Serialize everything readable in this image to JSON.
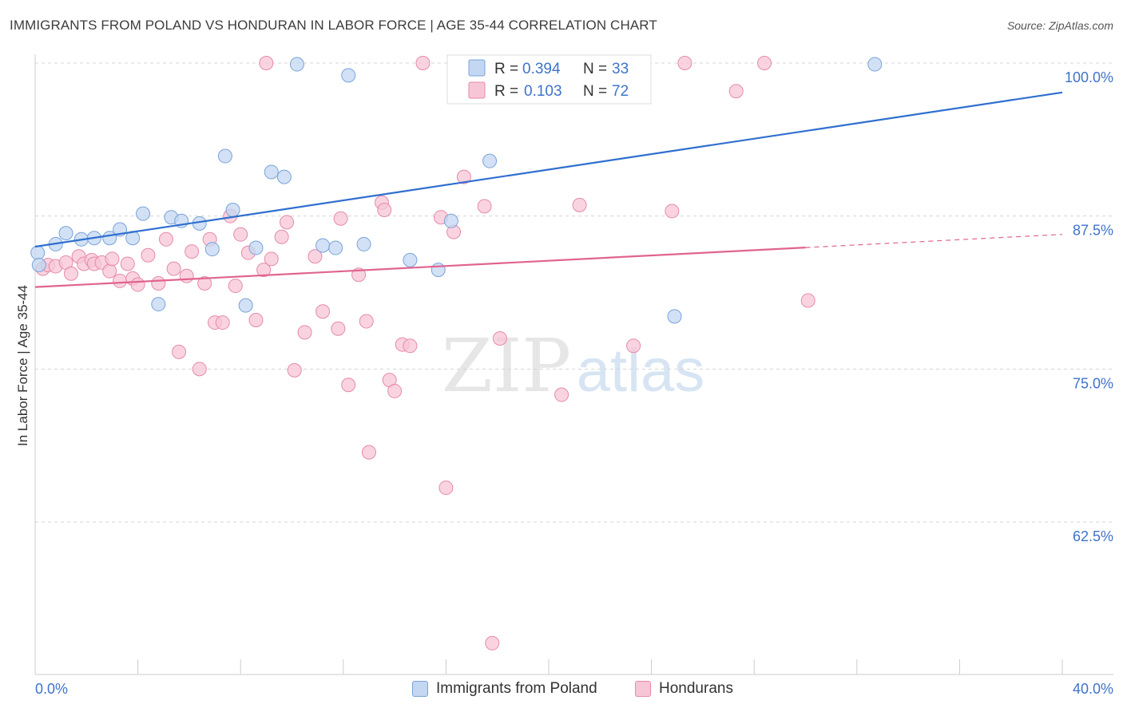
{
  "header": {
    "title": "IMMIGRANTS FROM POLAND VS HONDURAN IN LABOR FORCE | AGE 35-44 CORRELATION CHART",
    "source": "Source: ZipAtlas.com"
  },
  "watermark": {
    "zip": "ZIP",
    "atlas": "atlas"
  },
  "colors": {
    "blue_fill": "#c3d7f2",
    "blue_stroke": "#7aa3d9",
    "blue_line": "#2f6fcf",
    "pink_fill": "#f7c6d6",
    "pink_stroke": "#e68aaa",
    "pink_line": "#e0648f",
    "axis_label": "#3f73c9",
    "grid": "#d5d5d5"
  },
  "stats_legend": [
    {
      "r_label": "R =",
      "r_value": "0.394",
      "n_label": "N =",
      "n_value": "33"
    },
    {
      "r_label": "R =",
      "r_value": "0.103",
      "n_label": "N =",
      "n_value": "72"
    }
  ],
  "chart_data": {
    "type": "scatter",
    "xlabel": "",
    "ylabel": "In Labor Force | Age 35-44",
    "xlim": [
      0,
      40
    ],
    "ylim": [
      50,
      101
    ],
    "x_tick_labels": [
      "0.0%",
      "40.0%"
    ],
    "y_ticks": [
      62.5,
      75.0,
      87.5,
      100.0
    ],
    "y_tick_labels": [
      "62.5%",
      "75.0%",
      "87.5%",
      "100.0%"
    ],
    "grid": "horizontal dashed",
    "legend": "bottom-center",
    "series": [
      {
        "name": "Immigrants from Poland",
        "trend": {
          "x0": 0,
          "y0": 85.0,
          "x1": 40,
          "y1": 97.6,
          "dashed_from": null
        },
        "points": [
          [
            0.1,
            84.5
          ],
          [
            0.8,
            85.2
          ],
          [
            1.2,
            86.1
          ],
          [
            1.8,
            85.6
          ],
          [
            2.3,
            85.7
          ],
          [
            2.9,
            85.7
          ],
          [
            3.3,
            86.4
          ],
          [
            3.8,
            85.7
          ],
          [
            4.2,
            87.7
          ],
          [
            4.8,
            80.3
          ],
          [
            5.3,
            87.4
          ],
          [
            5.7,
            87.1
          ],
          [
            6.4,
            86.9
          ],
          [
            6.9,
            84.8
          ],
          [
            7.4,
            92.4
          ],
          [
            7.7,
            88.0
          ],
          [
            8.2,
            80.2
          ],
          [
            8.6,
            84.9
          ],
          [
            9.2,
            91.1
          ],
          [
            9.7,
            90.7
          ],
          [
            10.2,
            99.9
          ],
          [
            11.2,
            85.1
          ],
          [
            11.7,
            84.9
          ],
          [
            12.2,
            99.0
          ],
          [
            12.8,
            85.2
          ],
          [
            14.6,
            83.9
          ],
          [
            15.7,
            83.1
          ],
          [
            16.2,
            87.1
          ],
          [
            16.9,
            100.0
          ],
          [
            17.7,
            92.0
          ],
          [
            24.9,
            79.3
          ],
          [
            32.7,
            99.9
          ],
          [
            0.15,
            83.5
          ]
        ]
      },
      {
        "name": "Hondurans",
        "trend": {
          "x0": 0,
          "y0": 81.7,
          "x1": 40,
          "y1": 86.0,
          "dashed_from": 30.0
        },
        "points": [
          [
            0.3,
            83.2
          ],
          [
            0.5,
            83.5
          ],
          [
            0.8,
            83.4
          ],
          [
            1.2,
            83.7
          ],
          [
            1.4,
            82.8
          ],
          [
            1.7,
            84.2
          ],
          [
            1.9,
            83.6
          ],
          [
            2.2,
            83.9
          ],
          [
            2.3,
            83.6
          ],
          [
            2.6,
            83.7
          ],
          [
            2.9,
            83.0
          ],
          [
            3.0,
            84.0
          ],
          [
            3.3,
            82.2
          ],
          [
            3.6,
            83.6
          ],
          [
            3.8,
            82.4
          ],
          [
            4.0,
            81.9
          ],
          [
            4.4,
            84.3
          ],
          [
            4.8,
            82.0
          ],
          [
            5.1,
            85.6
          ],
          [
            5.4,
            83.2
          ],
          [
            5.6,
            76.4
          ],
          [
            5.9,
            82.6
          ],
          [
            6.1,
            84.6
          ],
          [
            6.4,
            75.0
          ],
          [
            6.6,
            82.0
          ],
          [
            6.8,
            85.6
          ],
          [
            7.0,
            78.8
          ],
          [
            7.3,
            78.8
          ],
          [
            7.6,
            87.5
          ],
          [
            7.8,
            81.8
          ],
          [
            8.0,
            86.0
          ],
          [
            8.3,
            84.5
          ],
          [
            8.6,
            79.0
          ],
          [
            8.9,
            83.1
          ],
          [
            9.2,
            84.0
          ],
          [
            9.6,
            85.8
          ],
          [
            9.8,
            87.0
          ],
          [
            10.1,
            74.9
          ],
          [
            10.5,
            78.0
          ],
          [
            10.9,
            84.2
          ],
          [
            11.2,
            79.7
          ],
          [
            11.8,
            78.3
          ],
          [
            11.9,
            87.3
          ],
          [
            12.2,
            73.7
          ],
          [
            12.6,
            82.7
          ],
          [
            12.9,
            78.9
          ],
          [
            13.0,
            68.2
          ],
          [
            13.5,
            88.6
          ],
          [
            13.6,
            88.0
          ],
          [
            13.8,
            74.1
          ],
          [
            14.0,
            73.2
          ],
          [
            14.3,
            77.0
          ],
          [
            14.6,
            76.9
          ],
          [
            15.1,
            100.0
          ],
          [
            15.8,
            87.4
          ],
          [
            16.0,
            65.3
          ],
          [
            16.3,
            86.2
          ],
          [
            16.7,
            90.7
          ],
          [
            17.5,
            88.3
          ],
          [
            17.8,
            52.6
          ],
          [
            18.1,
            77.5
          ],
          [
            19.5,
            100.0
          ],
          [
            20.5,
            72.9
          ],
          [
            21.2,
            88.4
          ],
          [
            21.7,
            100.0
          ],
          [
            23.3,
            76.9
          ],
          [
            24.8,
            87.9
          ],
          [
            25.3,
            100.0
          ],
          [
            27.3,
            97.7
          ],
          [
            28.4,
            100.0
          ],
          [
            30.1,
            80.6
          ],
          [
            9.0,
            100.0
          ]
        ]
      }
    ]
  }
}
